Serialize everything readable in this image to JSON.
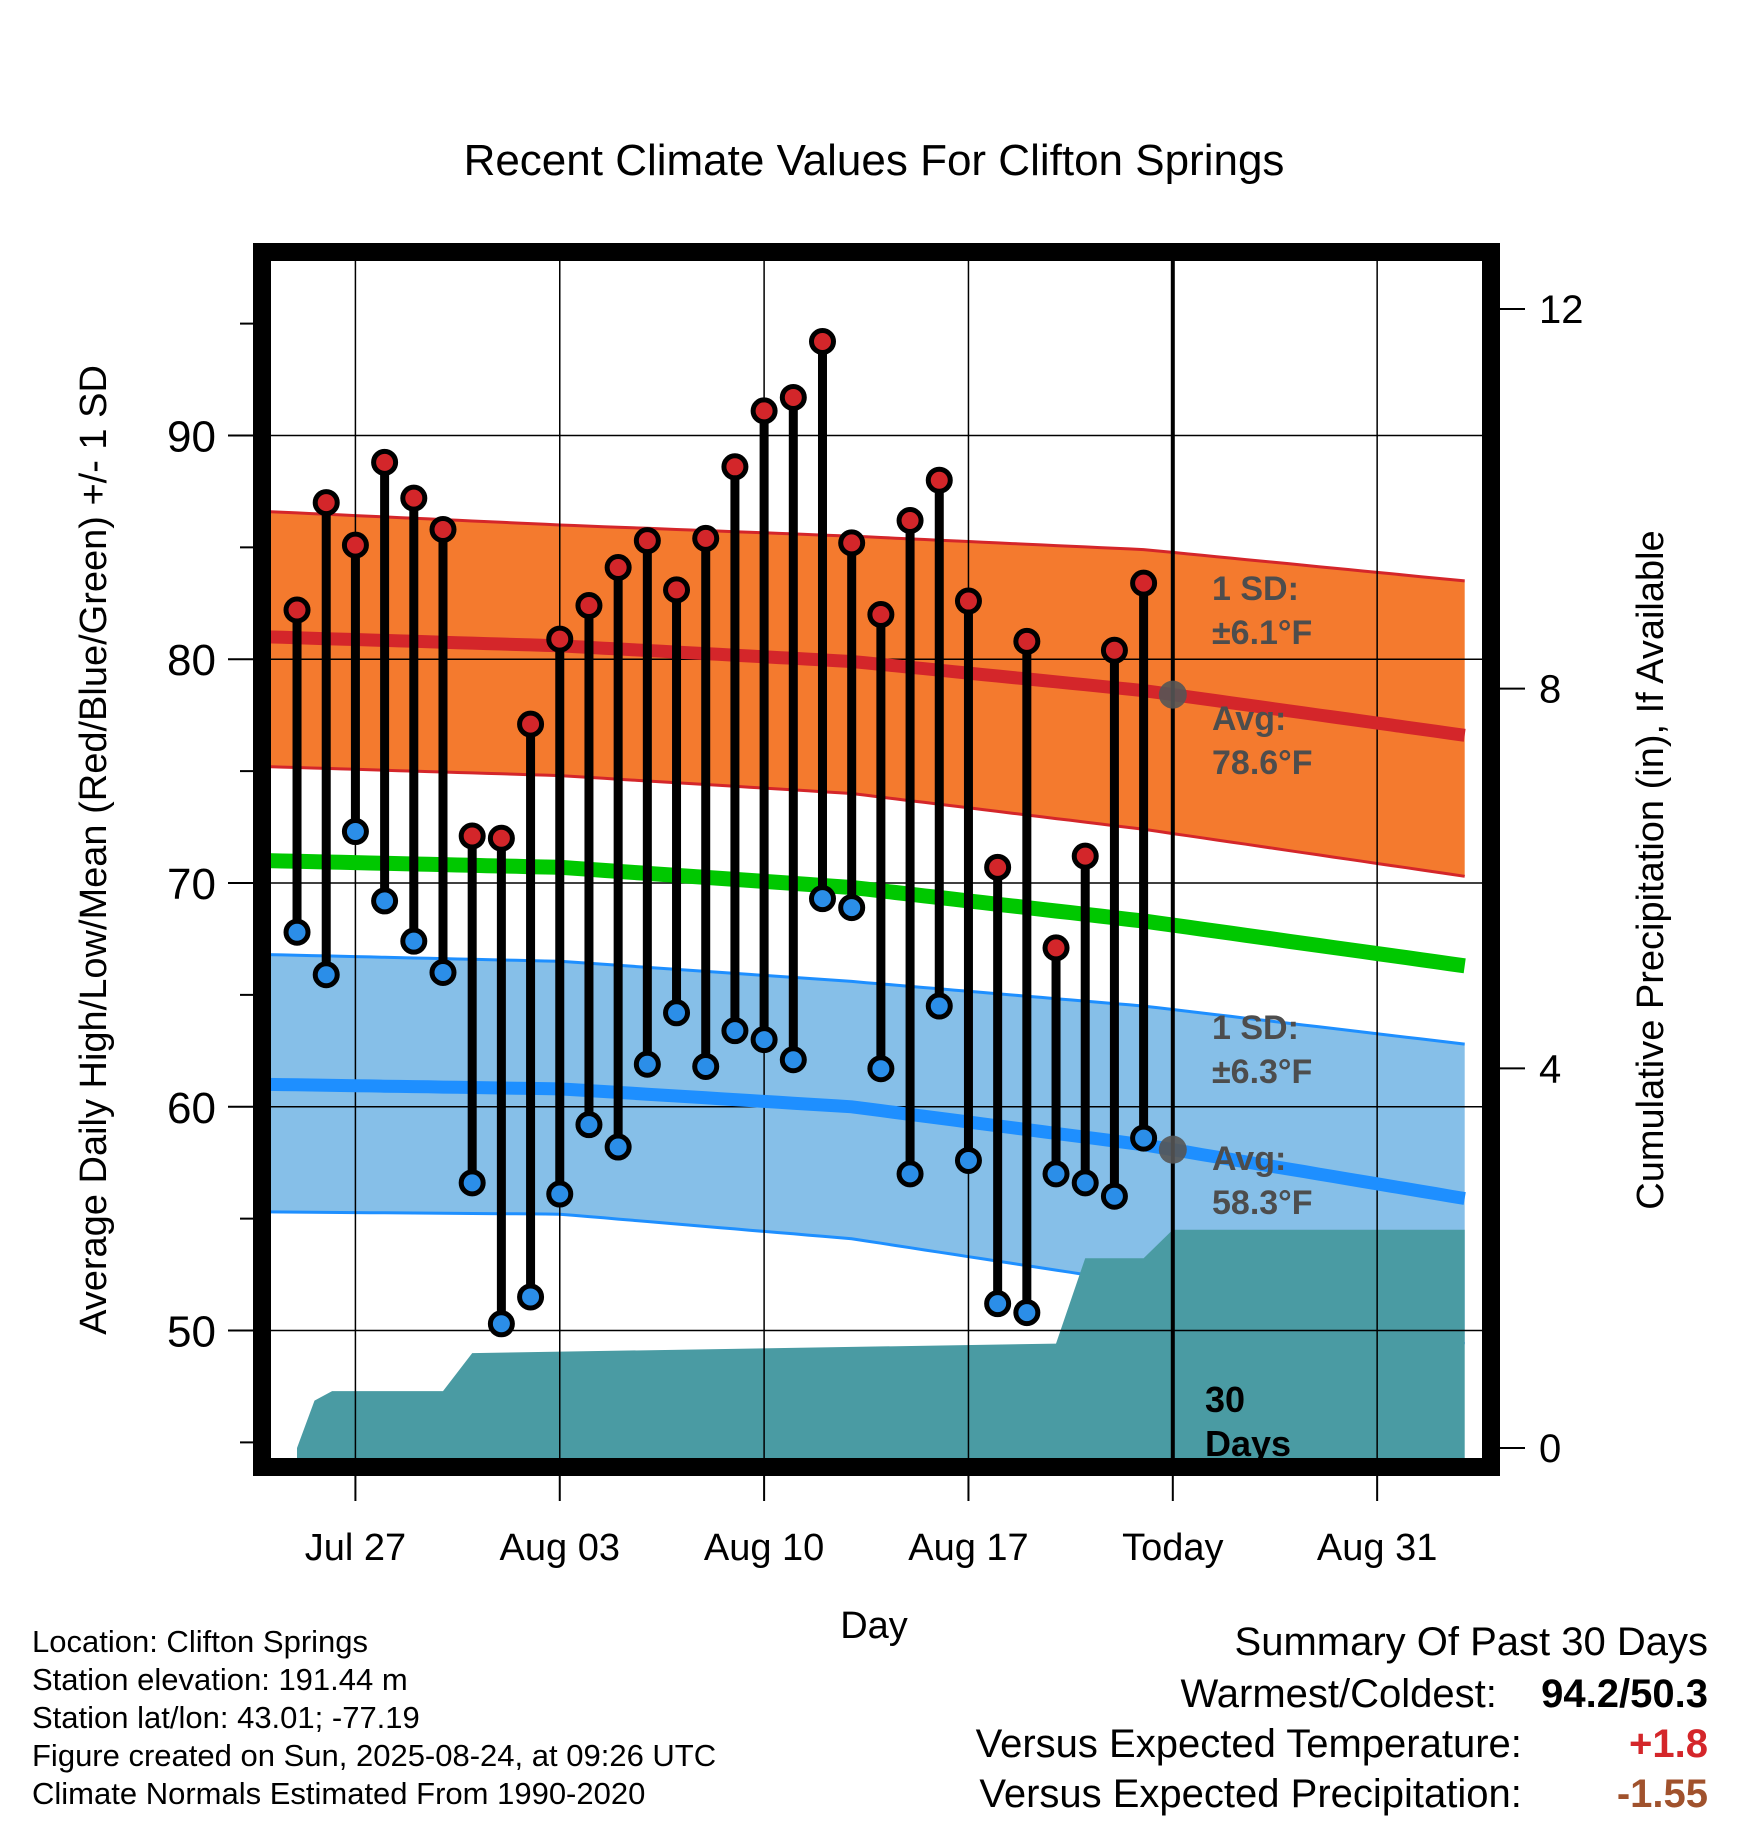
{
  "chart_data": {
    "type": "line",
    "title": "Recent Climate Values For Clifton Springs",
    "xlabel": "Day",
    "ylabel": "Average Daily High/Low/Mean (Red/Blue/Green) +/- 1 SD",
    "y2label": "Cumulative Precipitation (in), If Available",
    "x_ticks": [
      {
        "day": 3,
        "label": "Jul 27"
      },
      {
        "day": 10,
        "label": "Aug 03"
      },
      {
        "day": 17,
        "label": "Aug 10"
      },
      {
        "day": 24,
        "label": "Aug 17"
      },
      {
        "day": 31,
        "label": "Today"
      },
      {
        "day": 38,
        "label": "Aug 31"
      }
    ],
    "xlim": [
      -0.2,
      41.9
    ],
    "ylim": [
      43.9,
      98.2
    ],
    "y_ticks": [
      50,
      60,
      70,
      80,
      90
    ],
    "y2lim": [
      -0.2,
      12.6
    ],
    "y2_ticks": [
      0,
      4,
      8,
      12
    ],
    "grid": true,
    "today_day": 31,
    "daily_high": [
      82.2,
      87.0,
      85.1,
      88.8,
      87.2,
      85.8,
      72.1,
      72.0,
      77.1,
      80.9,
      82.4,
      84.1,
      85.3,
      83.1,
      85.4,
      88.6,
      91.1,
      91.7,
      94.2,
      85.2,
      82.0,
      86.2,
      88.0,
      82.6,
      70.7,
      80.8,
      67.1,
      71.2,
      80.4,
      83.4
    ],
    "daily_low": [
      67.8,
      65.9,
      72.3,
      69.2,
      67.4,
      66.0,
      56.6,
      50.3,
      51.5,
      56.1,
      59.2,
      58.2,
      61.9,
      64.2,
      61.8,
      63.4,
      63.0,
      62.1,
      69.3,
      68.9,
      61.7,
      57.0,
      64.5,
      57.6,
      51.2,
      50.8,
      57.0,
      56.6,
      56.0,
      58.6
    ],
    "normal_high": {
      "days": [
        0,
        10,
        20,
        30,
        41
      ],
      "mean": [
        81.0,
        80.6,
        79.9,
        78.6,
        76.6
      ],
      "upper": [
        86.6,
        86.0,
        85.5,
        84.9,
        83.5
      ],
      "lower": [
        75.2,
        74.8,
        74.0,
        72.4,
        70.3
      ]
    },
    "normal_mean": {
      "days": [
        0,
        10,
        20,
        30,
        41
      ],
      "values": [
        71.0,
        70.7,
        69.8,
        68.3,
        66.3
      ]
    },
    "normal_low": {
      "days": [
        0,
        10,
        20,
        30,
        41
      ],
      "mean": [
        61.0,
        60.8,
        60.0,
        58.3,
        55.9
      ],
      "upper": [
        66.8,
        66.5,
        65.6,
        64.5,
        62.8
      ],
      "lower": [
        55.3,
        55.2,
        54.1,
        52.1,
        49.4
      ]
    },
    "precip_cumulative": {
      "days": [
        1.0,
        1.6,
        2.2,
        6.0,
        7.0,
        27.0,
        28.0,
        30.0,
        31.0,
        41.0
      ],
      "values": [
        0.0,
        0.5,
        0.6,
        0.6,
        1.0,
        1.1,
        2.0,
        2.0,
        2.3,
        2.3
      ]
    },
    "annotations": {
      "high_sd": "1 SD:",
      "high_sd_value": "±6.1°F",
      "high_avg": "Avg:",
      "high_avg_value": "78.6°F",
      "low_sd": "1 SD:",
      "low_sd_value": "±6.3°F",
      "low_avg": "Avg:",
      "low_avg_value": "58.3°F",
      "days_a": "30",
      "days_b": "Days"
    },
    "colors": {
      "high_band": "#f47a2e",
      "high_line": "#d4262a",
      "mean_line": "#00c800",
      "low_band": "#86bfe8",
      "low_line": "#1e8fff",
      "precip": "#4a9ba3",
      "high_dot": "#d3262a",
      "low_dot": "#2b8ee8",
      "annotation_text": "#4d4d4d"
    }
  },
  "info": {
    "location": "Location: Clifton Springs",
    "elevation": "Station elevation: 191.44 m",
    "latlon": "Station lat/lon: 43.01; -77.19",
    "created": "Figure created on Sun, 2025-08-24, at 09:26 UTC",
    "normals": "Climate Normals Estimated From 1990-2020"
  },
  "summary": {
    "title": "Summary Of Past 30 Days",
    "warmest_label": "Warmest/Coldest:",
    "warmest_value": "94.2/50.3",
    "temp_label": "Versus Expected Temperature:",
    "temp_value": "+1.8",
    "temp_color": "#d4262a",
    "precip_label": "Versus Expected Precipitation:",
    "precip_value": "-1.55",
    "precip_color": "#a0522d"
  }
}
